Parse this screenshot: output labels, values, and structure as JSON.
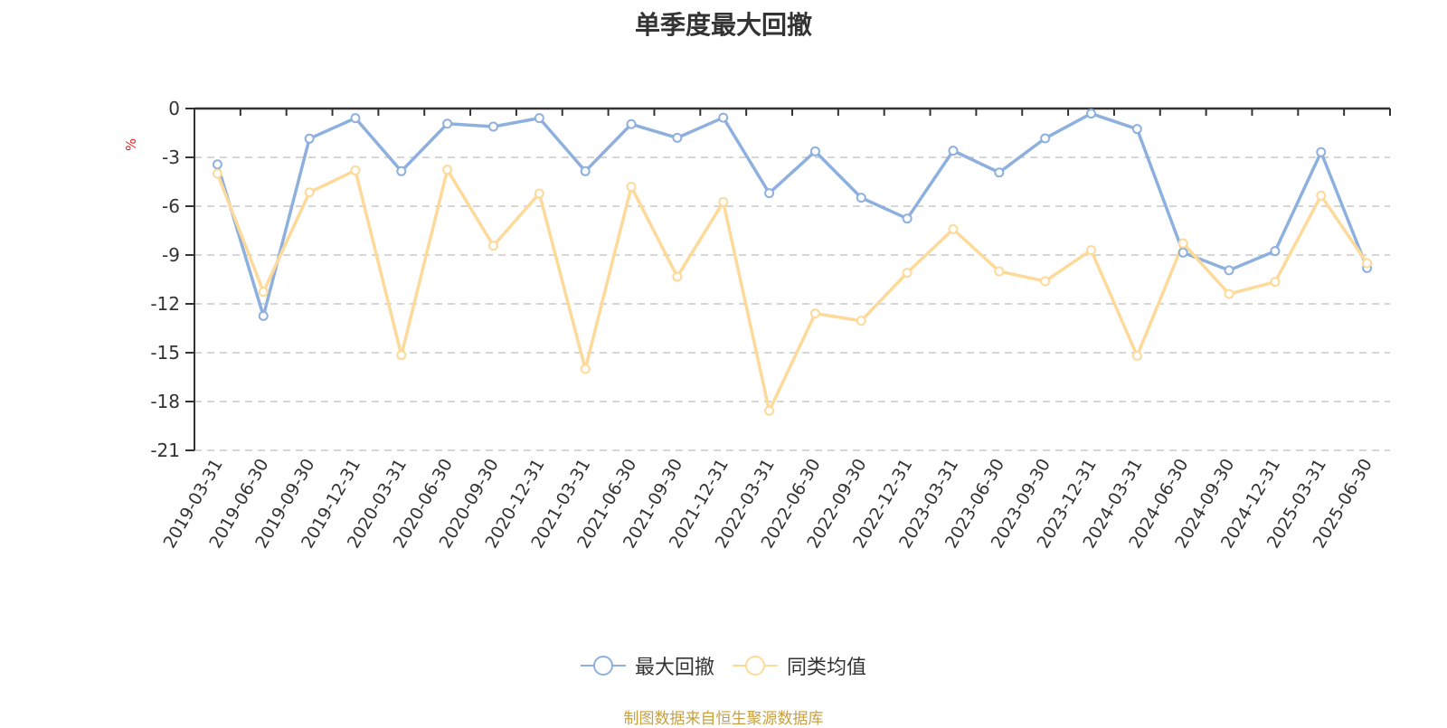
{
  "title": "单季度最大回撤",
  "y_unit": "%",
  "source": "制图数据来自恒生聚源数据库",
  "legend": [
    {
      "label": "最大回撤",
      "color": "#8eb0de"
    },
    {
      "label": "同类均值",
      "color": "#fdd99a"
    }
  ],
  "chart_data": {
    "type": "line",
    "title": "单季度最大回撤",
    "xlabel": "",
    "ylabel": "%",
    "ylim": [
      -21,
      0
    ],
    "yticks": [
      0,
      -3,
      -6,
      -9,
      -12,
      -15,
      -18,
      -21
    ],
    "grid": true,
    "legend_position": "bottom",
    "categories": [
      "2019-03-31",
      "2019-06-30",
      "2019-09-30",
      "2019-12-31",
      "2020-03-31",
      "2020-06-30",
      "2020-09-30",
      "2020-12-31",
      "2021-03-31",
      "2021-06-30",
      "2021-09-30",
      "2021-12-31",
      "2022-03-31",
      "2022-06-30",
      "2022-09-30",
      "2022-12-31",
      "2023-03-31",
      "2023-06-30",
      "2023-09-30",
      "2023-12-31",
      "2024-03-31",
      "2024-06-30",
      "2024-09-30",
      "2024-12-31",
      "2025-03-31",
      "2025-06-30"
    ],
    "series": [
      {
        "name": "最大回撤",
        "color": "#8eb0de",
        "values": [
          -3.43,
          -12.74,
          -1.85,
          -0.59,
          -3.85,
          -0.93,
          -1.11,
          -0.59,
          -3.85,
          -0.96,
          -1.8,
          -0.56,
          -5.2,
          -2.63,
          -5.48,
          -6.76,
          -2.59,
          -3.93,
          -1.83,
          -0.31,
          -1.26,
          -8.85,
          -9.94,
          -8.76,
          -2.68,
          -9.8
        ]
      },
      {
        "name": "同类均值",
        "color": "#fdd99a",
        "values": [
          -4.0,
          -11.26,
          -5.15,
          -3.8,
          -15.15,
          -3.76,
          -8.43,
          -5.22,
          -16.0,
          -4.81,
          -10.33,
          -5.74,
          -18.57,
          -12.59,
          -13.04,
          -10.09,
          -7.41,
          -10.0,
          -10.61,
          -8.7,
          -15.19,
          -8.28,
          -11.39,
          -10.65,
          -5.35,
          -9.5
        ]
      }
    ]
  }
}
